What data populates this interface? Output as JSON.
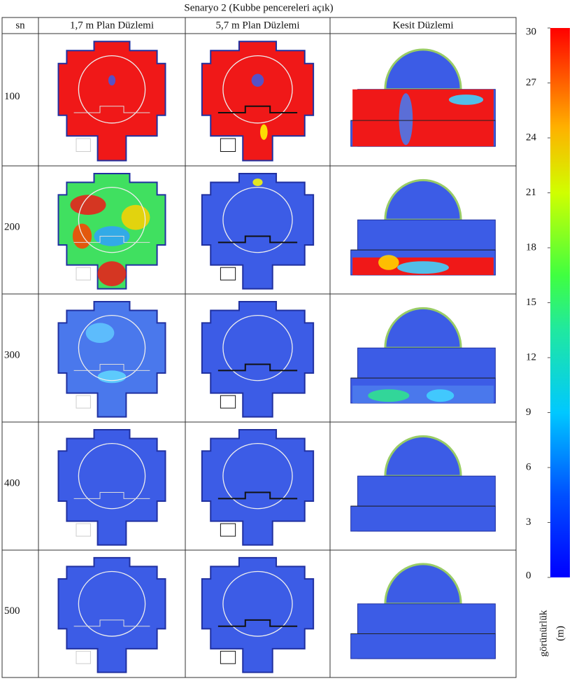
{
  "title": "Senaryo 2 (Kubbe pencereleri açık)",
  "table": {
    "header": [
      "sn",
      "1,7 m Plan Düzlemi",
      "5,7 m Plan Düzlemi",
      "Kesit Düzlemi"
    ],
    "rows": [
      "100",
      "200",
      "300",
      "400",
      "500"
    ]
  },
  "colorbar": {
    "lim": [
      0,
      30
    ],
    "ticks": [
      0,
      3,
      6,
      9,
      12,
      15,
      18,
      21,
      24,
      27,
      30
    ],
    "label": "görünürlük",
    "unit": "(m)"
  }
}
